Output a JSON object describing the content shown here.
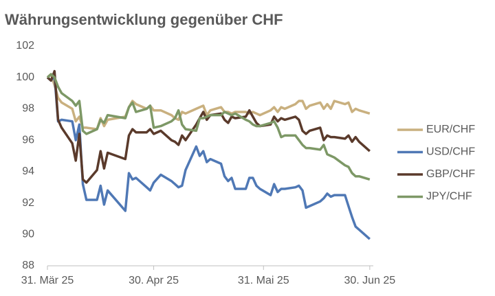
{
  "chart_data": {
    "type": "line",
    "title": "Währungsentwicklung gegenüber CHF",
    "x": [
      "2025-03-31",
      "2025-04-01",
      "2025-04-02",
      "2025-04-03",
      "2025-04-04",
      "2025-04-07",
      "2025-04-08",
      "2025-04-09",
      "2025-04-10",
      "2025-04-11",
      "2025-04-14",
      "2025-04-15",
      "2025-04-16",
      "2025-04-17",
      "2025-04-22",
      "2025-04-23",
      "2025-04-24",
      "2025-04-25",
      "2025-04-28",
      "2025-04-29",
      "2025-04-30",
      "2025-05-02",
      "2025-05-05",
      "2025-05-06",
      "2025-05-07",
      "2025-05-08",
      "2025-05-09",
      "2025-05-12",
      "2025-05-13",
      "2025-05-14",
      "2025-05-15",
      "2025-05-16",
      "2025-05-19",
      "2025-05-20",
      "2025-05-21",
      "2025-05-22",
      "2025-05-23",
      "2025-05-26",
      "2025-05-27",
      "2025-05-28",
      "2025-05-29",
      "2025-05-30",
      "2025-06-02",
      "2025-06-03",
      "2025-06-04",
      "2025-06-05",
      "2025-06-06",
      "2025-06-09",
      "2025-06-10",
      "2025-06-11",
      "2025-06-12",
      "2025-06-13",
      "2025-06-16",
      "2025-06-17",
      "2025-06-18",
      "2025-06-19",
      "2025-06-20",
      "2025-06-23",
      "2025-06-24",
      "2025-06-25",
      "2025-06-26",
      "2025-06-27",
      "2025-06-30"
    ],
    "series": [
      {
        "name": "EUR/CHF",
        "color": "#c9b07f",
        "values": [
          100.0,
          100.2,
          99.5,
          98.7,
          98.4,
          98.0,
          97.2,
          97.5,
          96.8,
          96.8,
          96.7,
          97.4,
          96.9,
          97.3,
          97.5,
          98.1,
          98.5,
          98.3,
          98.0,
          98.2,
          97.9,
          97.9,
          97.6,
          97.4,
          97.3,
          97.8,
          97.7,
          98.0,
          98.1,
          98.2,
          97.6,
          97.9,
          98.1,
          97.8,
          97.8,
          97.7,
          97.8,
          97.8,
          97.7,
          97.8,
          97.7,
          97.6,
          97.9,
          98.1,
          97.8,
          98.1,
          98.0,
          98.3,
          98.5,
          98.5,
          98.0,
          98.2,
          98.4,
          98.0,
          98.3,
          98.0,
          98.5,
          98.3,
          98.4,
          97.8,
          98.0,
          97.9,
          97.7
        ]
      },
      {
        "name": "USD/CHF",
        "color": "#4f78b5",
        "values": [
          100.0,
          99.8,
          100.1,
          97.2,
          97.3,
          97.2,
          96.0,
          97.0,
          93.2,
          92.2,
          92.2,
          93.1,
          91.9,
          92.8,
          91.5,
          93.9,
          93.5,
          93.6,
          93.0,
          92.8,
          93.3,
          93.8,
          93.4,
          93.2,
          93.0,
          93.1,
          94.1,
          95.6,
          95.0,
          95.3,
          94.6,
          94.8,
          94.5,
          93.7,
          93.4,
          93.6,
          92.9,
          92.9,
          93.6,
          93.6,
          93.1,
          92.9,
          92.5,
          93.2,
          92.7,
          92.9,
          92.9,
          93.0,
          93.1,
          92.8,
          91.7,
          91.8,
          92.1,
          92.3,
          92.6,
          92.4,
          92.5,
          92.5,
          91.8,
          91.1,
          90.5,
          90.3,
          89.7
        ]
      },
      {
        "name": "GBP/CHF",
        "color": "#5a3a2b",
        "values": [
          100.0,
          99.8,
          100.4,
          97.3,
          96.8,
          95.8,
          94.7,
          96.4,
          93.5,
          93.3,
          94.1,
          95.3,
          94.2,
          95.2,
          94.8,
          96.3,
          96.7,
          96.5,
          96.5,
          96.7,
          96.4,
          96.6,
          96.0,
          95.9,
          95.7,
          96.3,
          96.0,
          97.0,
          97.4,
          97.8,
          97.3,
          97.6,
          97.7,
          97.3,
          97.1,
          97.5,
          97.4,
          97.5,
          97.9,
          97.5,
          97.1,
          96.9,
          97.0,
          97.5,
          97.2,
          97.4,
          97.3,
          97.5,
          97.3,
          96.6,
          96.4,
          96.6,
          96.8,
          96.0,
          96.3,
          96.2,
          96.2,
          96.1,
          96.3,
          95.9,
          96.2,
          95.9,
          95.3
        ]
      },
      {
        "name": "JPY/CHF",
        "color": "#7d9866",
        "values": [
          100.0,
          100.2,
          100.0,
          99.4,
          99.0,
          98.5,
          98.2,
          98.5,
          96.6,
          96.4,
          96.7,
          97.3,
          97.1,
          97.6,
          97.4,
          98.1,
          98.4,
          97.8,
          98.0,
          98.2,
          96.8,
          96.9,
          97.2,
          97.4,
          97.9,
          97.0,
          96.7,
          96.6,
          97.4,
          97.4,
          97.5,
          97.6,
          97.6,
          97.8,
          97.7,
          97.6,
          97.7,
          97.3,
          97.2,
          97.0,
          96.9,
          96.9,
          97.1,
          97.2,
          96.8,
          96.2,
          96.3,
          96.3,
          96.0,
          95.7,
          95.5,
          95.5,
          95.4,
          95.7,
          95.1,
          95.0,
          94.9,
          94.4,
          94.3,
          93.9,
          93.7,
          93.7,
          93.5
        ]
      }
    ],
    "xlim": [
      "2025-03-31",
      "2025-07-01"
    ],
    "xticks": [
      {
        "value": "2025-03-31",
        "label": "31. Mär 25"
      },
      {
        "value": "2025-04-30",
        "label": "30. Apr 25"
      },
      {
        "value": "2025-05-31",
        "label": "31. Mai 25"
      },
      {
        "value": "2025-06-30",
        "label": "30. Jun 25"
      }
    ],
    "ylim": [
      88,
      102
    ],
    "yticks": [
      88,
      90,
      92,
      94,
      96,
      98,
      100,
      102
    ],
    "grid": false,
    "legend": "right"
  }
}
